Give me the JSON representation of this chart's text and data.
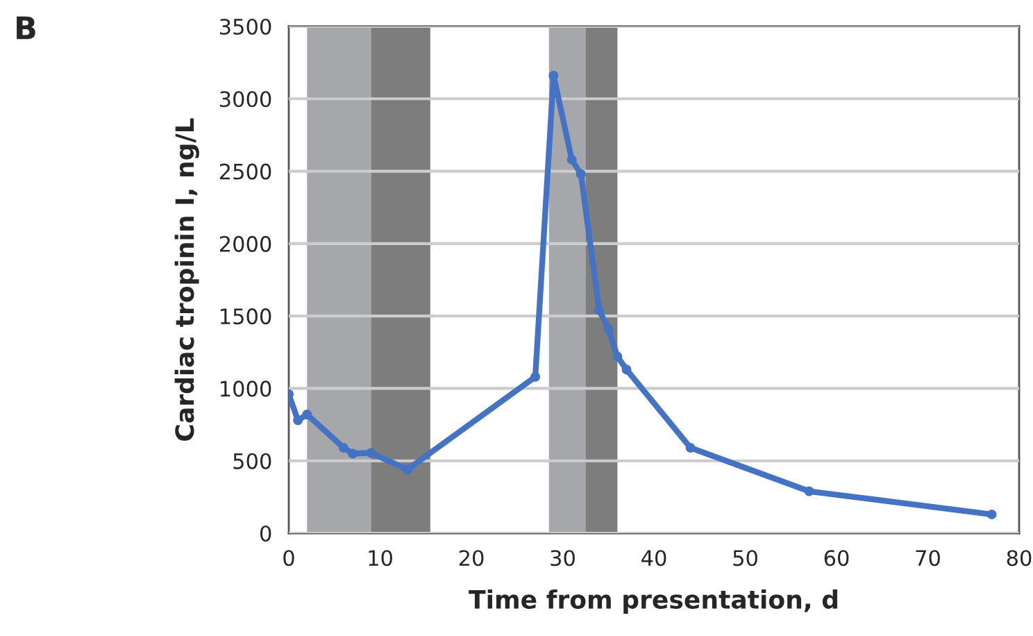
{
  "chart_data": {
    "type": "line",
    "title": "B",
    "xlabel": "Time from presentation, d",
    "ylabel": "Cardiac tropinin I, ng/L",
    "x": [
      0,
      1,
      2,
      6,
      7,
      9,
      13,
      27,
      29,
      31,
      32,
      34,
      35,
      36,
      37,
      44,
      57,
      77
    ],
    "series": [
      {
        "color": "#4472c4",
        "values": [
          960,
          780,
          820,
          590,
          550,
          555,
          440,
          1080,
          3160,
          2580,
          2480,
          1540,
          1410,
          1220,
          1130,
          590,
          290,
          130
        ]
      }
    ],
    "xlim": [
      0,
      80
    ],
    "xticks": [
      0,
      10,
      20,
      30,
      40,
      50,
      60,
      70,
      80
    ],
    "ylim": [
      0,
      3500
    ],
    "yticks": [
      0,
      500,
      1000,
      1500,
      2000,
      2500,
      3000,
      3500
    ],
    "bands": [
      {
        "axis": "x",
        "from": 2,
        "to": 9,
        "color": "#a6a7aa"
      },
      {
        "axis": "x",
        "from": 9,
        "to": 15.5,
        "color": "#7c7d7c"
      },
      {
        "axis": "x",
        "from": 28.5,
        "to": 32.5,
        "color": "#a6a7aa"
      },
      {
        "axis": "x",
        "from": 32.5,
        "to": 36,
        "color": "#7c7d7c"
      }
    ],
    "grid": "y",
    "marker": "circle",
    "line_style": "solid",
    "legend": false
  }
}
